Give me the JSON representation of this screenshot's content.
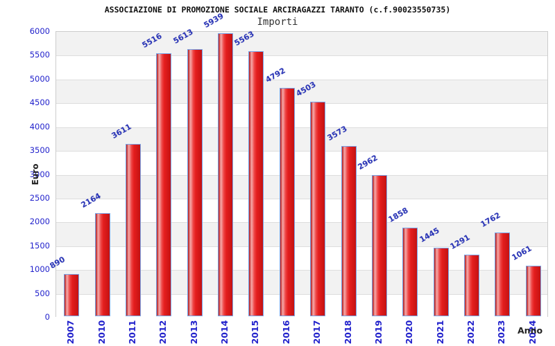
{
  "chart_data": {
    "type": "bar",
    "title": "ASSOCIAZIONE DI PROMOZIONE SOCIALE ARCIRAGAZZI TARANTO (c.f.90023550735)",
    "subtitle": "Importi",
    "xlabel": "Anno",
    "ylabel": "Euro",
    "categories": [
      "2007",
      "2010",
      "2011",
      "2012",
      "2013",
      "2014",
      "2015",
      "2016",
      "2017",
      "2018",
      "2019",
      "2020",
      "2021",
      "2022",
      "2023",
      "2024"
    ],
    "values": [
      890,
      2164,
      3611,
      5516,
      5613,
      5939,
      5563,
      4792,
      4503,
      3573,
      2962,
      1858,
      1445,
      1291,
      1762,
      1061
    ],
    "ylim": [
      0,
      6000
    ],
    "yticks": [
      0,
      500,
      1000,
      1500,
      2000,
      2500,
      3000,
      3500,
      4000,
      4500,
      5000,
      5500,
      6000
    ],
    "grid": true,
    "legend_position": "none",
    "colors": {
      "bar_border": "#76a3e8",
      "bar_main": "#e41e1e",
      "bar_highlight": "#f6aaaa",
      "bar_edge_dark": "#b51818",
      "bar_edge_right": "#c41212",
      "value_label": "#2a35b8",
      "axis_tick": "#2222cc",
      "band_odd": "#f2f2f2",
      "band_even": "#ffffff",
      "gridline": "#dddddd",
      "plot_border": "#cccccc",
      "title_color": "#111111",
      "subtitle_color": "#333333",
      "axis_title_color": "#222222"
    }
  }
}
